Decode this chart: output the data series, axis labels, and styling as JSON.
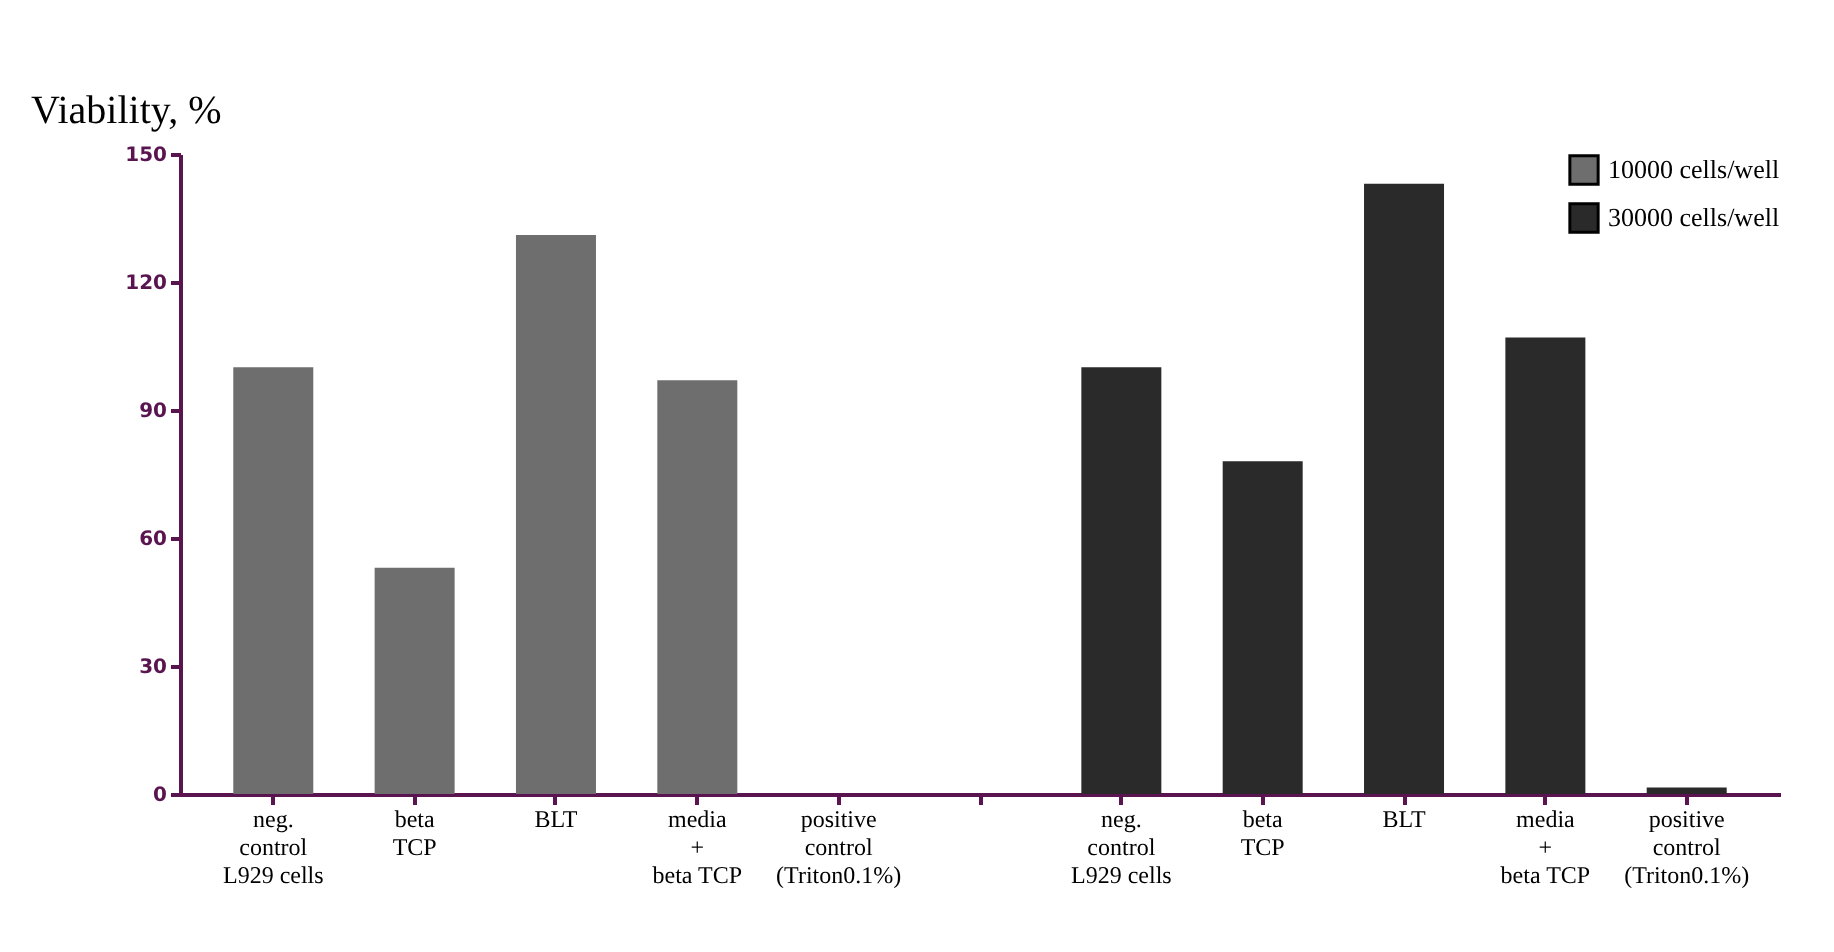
{
  "chart_data": {
    "type": "bar",
    "ylabel": "Viability, %",
    "categories": [
      "neg.\ncontrol\nL929 cells",
      "beta\nTCP",
      "BLT",
      "media\n+\nbeta TCP",
      "positive\ncontrol\n(Triton0.1%)",
      null,
      "neg.\ncontrol\nL929 cells",
      "beta\nTCP",
      "BLT",
      "media\n+\nbeta TCP",
      "positive\ncontrol\n(Triton0.1%)"
    ],
    "series": [
      {
        "name": "10000 cells/well",
        "color": "#6e6e6e",
        "values": [
          100,
          53,
          131,
          97,
          0,
          null,
          null,
          null,
          null,
          null,
          null
        ]
      },
      {
        "name": "30000 cells/well",
        "color": "#2a2a2a",
        "values": [
          null,
          null,
          null,
          null,
          null,
          null,
          100,
          78,
          143,
          107,
          1.5
        ]
      }
    ],
    "ylim": [
      0,
      150
    ],
    "yticks": [
      0,
      30,
      60,
      90,
      120,
      150
    ],
    "grid": false,
    "legend": "right"
  }
}
